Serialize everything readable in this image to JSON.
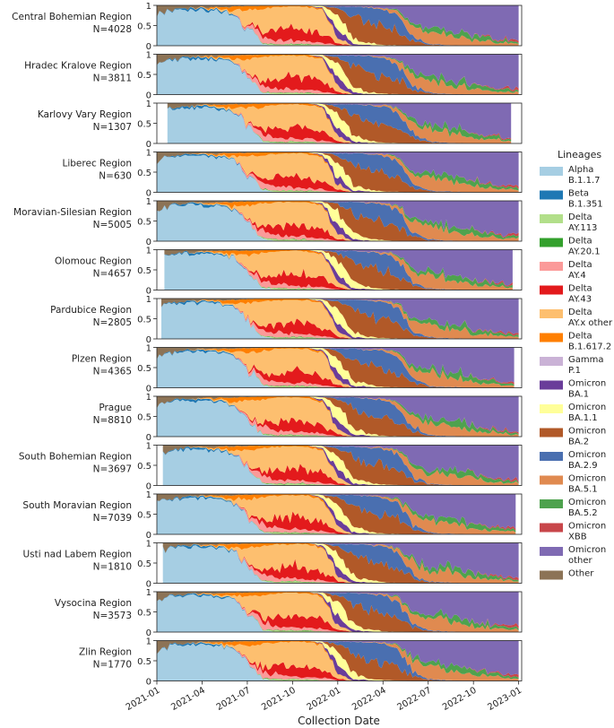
{
  "chart_data": {
    "type": "area",
    "subtype": "stacked-normalized",
    "xlabel": "Collection Date",
    "ylabel": "",
    "ylim": [
      0,
      1
    ],
    "yticks": [
      "0",
      "0.5",
      "1"
    ],
    "xticks": [
      {
        "label": "2021-01",
        "t": 0.0
      },
      {
        "label": "2021-04",
        "t": 3.0
      },
      {
        "label": "2021-07",
        "t": 6.0
      },
      {
        "label": "2021-10",
        "t": 9.0
      },
      {
        "label": "2022-01",
        "t": 12.0
      },
      {
        "label": "2022-04",
        "t": 15.0
      },
      {
        "label": "2022-07",
        "t": 18.0
      },
      {
        "label": "2022-10",
        "t": 21.0
      },
      {
        "label": "2023-01",
        "t": 24.0
      }
    ],
    "legend": {
      "title": "Lineages",
      "placement": "right",
      "items": [
        {
          "name": "Alpha",
          "sub": "B.1.1.7",
          "color": "#a6cee3"
        },
        {
          "name": "Beta",
          "sub": "B.1.351",
          "color": "#1f78b4"
        },
        {
          "name": "Delta",
          "sub": "AY.113",
          "color": "#b2df8a"
        },
        {
          "name": "Delta",
          "sub": "AY.20.1",
          "color": "#33a02c"
        },
        {
          "name": "Delta",
          "sub": "AY.4",
          "color": "#fb9a99"
        },
        {
          "name": "Delta",
          "sub": "AY.43",
          "color": "#e31a1c"
        },
        {
          "name": "Delta",
          "sub": "AY.x other",
          "color": "#fdbf6f"
        },
        {
          "name": "Delta",
          "sub": "B.1.617.2",
          "color": "#ff7f00"
        },
        {
          "name": "Gamma",
          "sub": "P.1",
          "color": "#cab2d6"
        },
        {
          "name": "Omicron",
          "sub": "BA.1",
          "color": "#6a3d9a"
        },
        {
          "name": "Omicron",
          "sub": "BA.1.1",
          "color": "#ffff99"
        },
        {
          "name": "Omicron",
          "sub": "BA.2",
          "color": "#b15928"
        },
        {
          "name": "Omicron",
          "sub": "BA.2.9",
          "color": "#4a6fb0"
        },
        {
          "name": "Omicron",
          "sub": "BA.5.1",
          "color": "#e08a50"
        },
        {
          "name": "Omicron",
          "sub": "BA.5.2",
          "color": "#4ea24e"
        },
        {
          "name": "Omicron",
          "sub": "XBB",
          "color": "#c8464a"
        },
        {
          "name": "Omicron",
          "sub": "other",
          "color": "#7f6ab3"
        },
        {
          "name": "Other",
          "sub": "",
          "color": "#8c7356"
        }
      ]
    },
    "time_grid_months_since_2021_01": [
      0,
      1,
      2,
      3,
      4,
      5,
      6,
      7,
      8,
      9,
      10,
      11,
      12,
      13,
      14,
      15,
      16,
      17,
      18,
      19,
      20,
      21,
      22,
      23,
      24
    ],
    "base_profile": {
      "note": "approximate national average share per lineage (order matches legend.items) at each month",
      "shares": [
        [
          0.8,
          0.0,
          0.0,
          0.0,
          0.0,
          0.0,
          0.0,
          0.0,
          0.0,
          0.0,
          0.0,
          0.0,
          0.0,
          0.0,
          0.0,
          0.0,
          0.0,
          0.2
        ],
        [
          0.88,
          0.02,
          0.0,
          0.0,
          0.0,
          0.0,
          0.0,
          0.0,
          0.0,
          0.0,
          0.0,
          0.0,
          0.0,
          0.0,
          0.0,
          0.0,
          0.0,
          0.1
        ],
        [
          0.9,
          0.04,
          0.0,
          0.0,
          0.0,
          0.0,
          0.0,
          0.0,
          0.0,
          0.0,
          0.0,
          0.0,
          0.0,
          0.0,
          0.0,
          0.0,
          0.0,
          0.06
        ],
        [
          0.9,
          0.04,
          0.0,
          0.0,
          0.0,
          0.0,
          0.01,
          0.01,
          0.0,
          0.0,
          0.0,
          0.0,
          0.0,
          0.0,
          0.0,
          0.0,
          0.0,
          0.04
        ],
        [
          0.88,
          0.03,
          0.0,
          0.0,
          0.0,
          0.0,
          0.02,
          0.03,
          0.0,
          0.0,
          0.0,
          0.0,
          0.0,
          0.0,
          0.0,
          0.0,
          0.0,
          0.04
        ],
        [
          0.8,
          0.02,
          0.0,
          0.0,
          0.0,
          0.0,
          0.05,
          0.1,
          0.0,
          0.0,
          0.0,
          0.0,
          0.0,
          0.0,
          0.0,
          0.0,
          0.0,
          0.03
        ],
        [
          0.45,
          0.01,
          0.0,
          0.0,
          0.05,
          0.02,
          0.35,
          0.1,
          0.0,
          0.0,
          0.0,
          0.0,
          0.0,
          0.0,
          0.0,
          0.0,
          0.0,
          0.02
        ],
        [
          0.05,
          0.0,
          0.01,
          0.01,
          0.15,
          0.1,
          0.6,
          0.07,
          0.0,
          0.0,
          0.0,
          0.0,
          0.0,
          0.0,
          0.0,
          0.0,
          0.0,
          0.01
        ],
        [
          0.0,
          0.0,
          0.03,
          0.01,
          0.1,
          0.22,
          0.6,
          0.04,
          0.0,
          0.0,
          0.0,
          0.0,
          0.0,
          0.0,
          0.0,
          0.0,
          0.0,
          0.0
        ],
        [
          0.0,
          0.0,
          0.04,
          0.01,
          0.08,
          0.3,
          0.54,
          0.03,
          0.0,
          0.0,
          0.0,
          0.0,
          0.0,
          0.0,
          0.0,
          0.0,
          0.0,
          0.0
        ],
        [
          0.0,
          0.0,
          0.03,
          0.01,
          0.06,
          0.28,
          0.58,
          0.04,
          0.0,
          0.0,
          0.0,
          0.0,
          0.0,
          0.0,
          0.0,
          0.0,
          0.0,
          0.0
        ],
        [
          0.0,
          0.0,
          0.02,
          0.0,
          0.05,
          0.22,
          0.58,
          0.03,
          0.0,
          0.03,
          0.05,
          0.0,
          0.0,
          0.0,
          0.0,
          0.0,
          0.02,
          0.0
        ],
        [
          0.0,
          0.0,
          0.0,
          0.0,
          0.01,
          0.05,
          0.12,
          0.01,
          0.0,
          0.2,
          0.35,
          0.18,
          0.05,
          0.0,
          0.0,
          0.0,
          0.03,
          0.0
        ],
        [
          0.0,
          0.0,
          0.0,
          0.0,
          0.0,
          0.0,
          0.0,
          0.0,
          0.0,
          0.05,
          0.15,
          0.5,
          0.27,
          0.0,
          0.0,
          0.0,
          0.03,
          0.0
        ],
        [
          0.0,
          0.0,
          0.0,
          0.0,
          0.0,
          0.0,
          0.0,
          0.0,
          0.0,
          0.02,
          0.05,
          0.48,
          0.4,
          0.01,
          0.0,
          0.0,
          0.04,
          0.0
        ],
        [
          0.0,
          0.0,
          0.0,
          0.0,
          0.0,
          0.0,
          0.0,
          0.0,
          0.0,
          0.0,
          0.02,
          0.45,
          0.45,
          0.03,
          0.0,
          0.0,
          0.05,
          0.0
        ],
        [
          0.0,
          0.0,
          0.0,
          0.0,
          0.0,
          0.0,
          0.0,
          0.0,
          0.0,
          0.0,
          0.01,
          0.35,
          0.4,
          0.1,
          0.03,
          0.0,
          0.11,
          0.0
        ],
        [
          0.0,
          0.0,
          0.0,
          0.0,
          0.0,
          0.0,
          0.0,
          0.0,
          0.0,
          0.0,
          0.0,
          0.12,
          0.1,
          0.25,
          0.08,
          0.0,
          0.45,
          0.0
        ],
        [
          0.0,
          0.0,
          0.0,
          0.0,
          0.0,
          0.0,
          0.0,
          0.0,
          0.0,
          0.0,
          0.0,
          0.03,
          0.02,
          0.3,
          0.1,
          0.0,
          0.55,
          0.0
        ],
        [
          0.0,
          0.0,
          0.0,
          0.0,
          0.0,
          0.0,
          0.0,
          0.0,
          0.0,
          0.0,
          0.0,
          0.01,
          0.01,
          0.28,
          0.12,
          0.0,
          0.58,
          0.0
        ],
        [
          0.0,
          0.0,
          0.0,
          0.0,
          0.0,
          0.0,
          0.0,
          0.0,
          0.0,
          0.0,
          0.0,
          0.0,
          0.01,
          0.2,
          0.14,
          0.0,
          0.65,
          0.0
        ],
        [
          0.0,
          0.0,
          0.0,
          0.0,
          0.0,
          0.0,
          0.0,
          0.0,
          0.0,
          0.0,
          0.0,
          0.0,
          0.0,
          0.15,
          0.12,
          0.01,
          0.72,
          0.0
        ],
        [
          0.0,
          0.0,
          0.0,
          0.0,
          0.0,
          0.0,
          0.0,
          0.0,
          0.0,
          0.0,
          0.0,
          0.0,
          0.0,
          0.1,
          0.08,
          0.02,
          0.8,
          0.0
        ],
        [
          0.0,
          0.0,
          0.0,
          0.0,
          0.0,
          0.0,
          0.0,
          0.0,
          0.0,
          0.0,
          0.0,
          0.0,
          0.0,
          0.07,
          0.05,
          0.03,
          0.85,
          0.0
        ],
        [
          0.0,
          0.0,
          0.0,
          0.0,
          0.0,
          0.0,
          0.0,
          0.0,
          0.0,
          0.0,
          0.0,
          0.0,
          0.0,
          0.05,
          0.04,
          0.05,
          0.86,
          0.0
        ]
      ]
    },
    "panels": [
      {
        "region": "Central Bohemian Region",
        "n": "N=4028",
        "start_month": 0.0,
        "end_month": 24.0
      },
      {
        "region": "Hradec Kralove Region",
        "n": "N=3811",
        "start_month": 0.0,
        "end_month": 24.0
      },
      {
        "region": "Karlovy Vary Region",
        "n": "N=1307",
        "start_month": 0.7,
        "end_month": 23.5
      },
      {
        "region": "Liberec Region",
        "n": "N=630",
        "start_month": 0.0,
        "end_month": 24.0
      },
      {
        "region": "Moravian-Silesian Region",
        "n": "N=5005",
        "start_month": 0.0,
        "end_month": 24.0
      },
      {
        "region": "Olomouc Region",
        "n": "N=4657",
        "start_month": 0.5,
        "end_month": 23.6
      },
      {
        "region": "Pardubice Region",
        "n": "N=2805",
        "start_month": 0.3,
        "end_month": 24.0
      },
      {
        "region": "Plzen Region",
        "n": "N=4365",
        "start_month": 0.0,
        "end_month": 23.7
      },
      {
        "region": "Prague",
        "n": "N=8810",
        "start_month": 0.0,
        "end_month": 24.0
      },
      {
        "region": "South Bohemian Region",
        "n": "N=3697",
        "start_month": 0.4,
        "end_month": 24.0
      },
      {
        "region": "South Moravian Region",
        "n": "N=7039",
        "start_month": 0.0,
        "end_month": 23.8
      },
      {
        "region": "Usti nad Labem Region",
        "n": "N=1810",
        "start_month": 0.4,
        "end_month": 24.0
      },
      {
        "region": "Vysocina Region",
        "n": "N=3573",
        "start_month": 0.0,
        "end_month": 24.0
      },
      {
        "region": "Zlin Region",
        "n": "N=1770",
        "start_month": 0.0,
        "end_month": 24.0
      }
    ]
  }
}
